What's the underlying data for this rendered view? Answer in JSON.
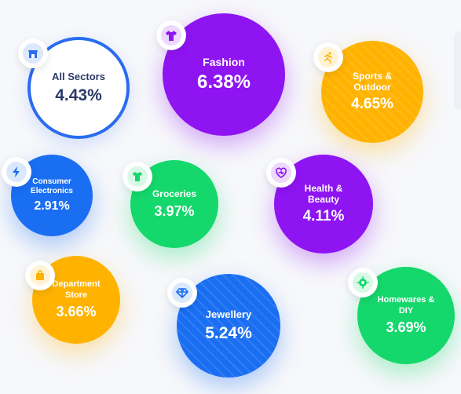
{
  "chart_data": {
    "type": "bubble",
    "unit": "%",
    "series": [
      {
        "category": "All Sectors",
        "value": 4.43,
        "value_label": "4.43%",
        "color": "#ffffff",
        "accent": "#2a6cf0",
        "icon": "storefront-icon"
      },
      {
        "category": "Fashion",
        "value": 6.38,
        "value_label": "6.38%",
        "color": "#8e14f2",
        "accent": "#8e14f2",
        "icon": "tshirt-icon"
      },
      {
        "category": "Sports & Outdoor",
        "value": 4.65,
        "value_label": "4.65%",
        "color": "#ffb300",
        "accent": "#ffb300",
        "icon": "running-person-icon"
      },
      {
        "category": "Consumer Electronics",
        "value": 2.91,
        "value_label": "2.91%",
        "color": "#1a6ef2",
        "accent": "#1a6ef2",
        "icon": "lightning-icon"
      },
      {
        "category": "Groceries",
        "value": 3.97,
        "value_label": "3.97%",
        "color": "#14d86b",
        "accent": "#14d86b",
        "icon": "shirt-bag-icon"
      },
      {
        "category": "Health & Beauty",
        "value": 4.11,
        "value_label": "4.11%",
        "color": "#8e14f2",
        "accent": "#8e14f2",
        "icon": "heart-icon"
      },
      {
        "category": "Department Store",
        "value": 3.66,
        "value_label": "3.66%",
        "color": "#ffb300",
        "accent": "#ffb300",
        "icon": "shopping-bag-icon"
      },
      {
        "category": "Jewellery",
        "value": 5.24,
        "value_label": "5.24%",
        "color": "#1a6ef2",
        "accent": "#1a6ef2",
        "icon": "diamond-icon"
      },
      {
        "category": "Homewares & DIY",
        "value": 3.69,
        "value_label": "3.69%",
        "color": "#14d86b",
        "accent": "#14d86b",
        "icon": "gear-icon"
      }
    ]
  }
}
